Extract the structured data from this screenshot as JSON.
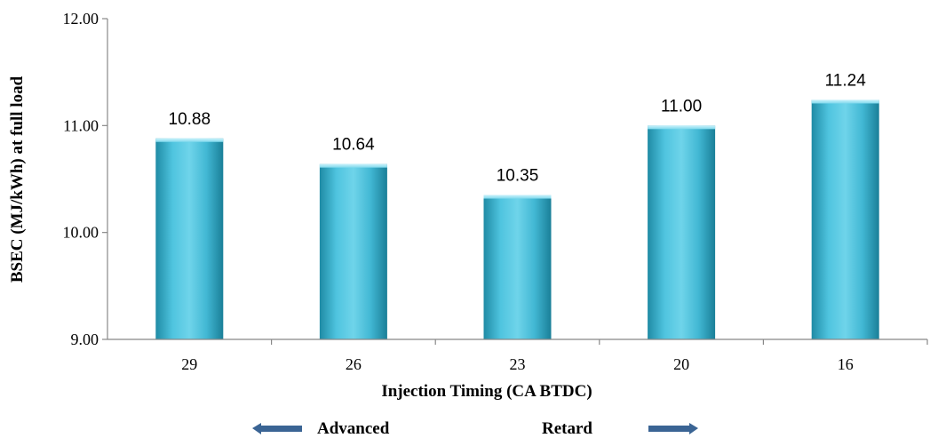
{
  "chart_data": {
    "type": "bar",
    "categories": [
      "29",
      "26",
      "23",
      "20",
      "16"
    ],
    "values": [
      10.88,
      10.64,
      10.35,
      11.0,
      11.24
    ],
    "data_labels": [
      "10.88",
      "10.64",
      "10.35",
      "11.00",
      "11.24"
    ],
    "xlabel": "Injection Timing (CA BTDC)",
    "ylabel": "BSEC  (MJ/kWh) at full load",
    "ylim": [
      9.0,
      12.0
    ],
    "yticks": [
      "9.00",
      "10.00",
      "11.00",
      "12.00"
    ],
    "grid": false,
    "legend": "none",
    "annotations": {
      "advanced": "Advanced",
      "retard": "Retard"
    },
    "colors": {
      "bar_light": "#9fe3f2",
      "bar_mid": "#4cc2dd",
      "bar_dark": "#1a7f98",
      "arrow": "#3a6494",
      "axis": "#888888"
    }
  }
}
